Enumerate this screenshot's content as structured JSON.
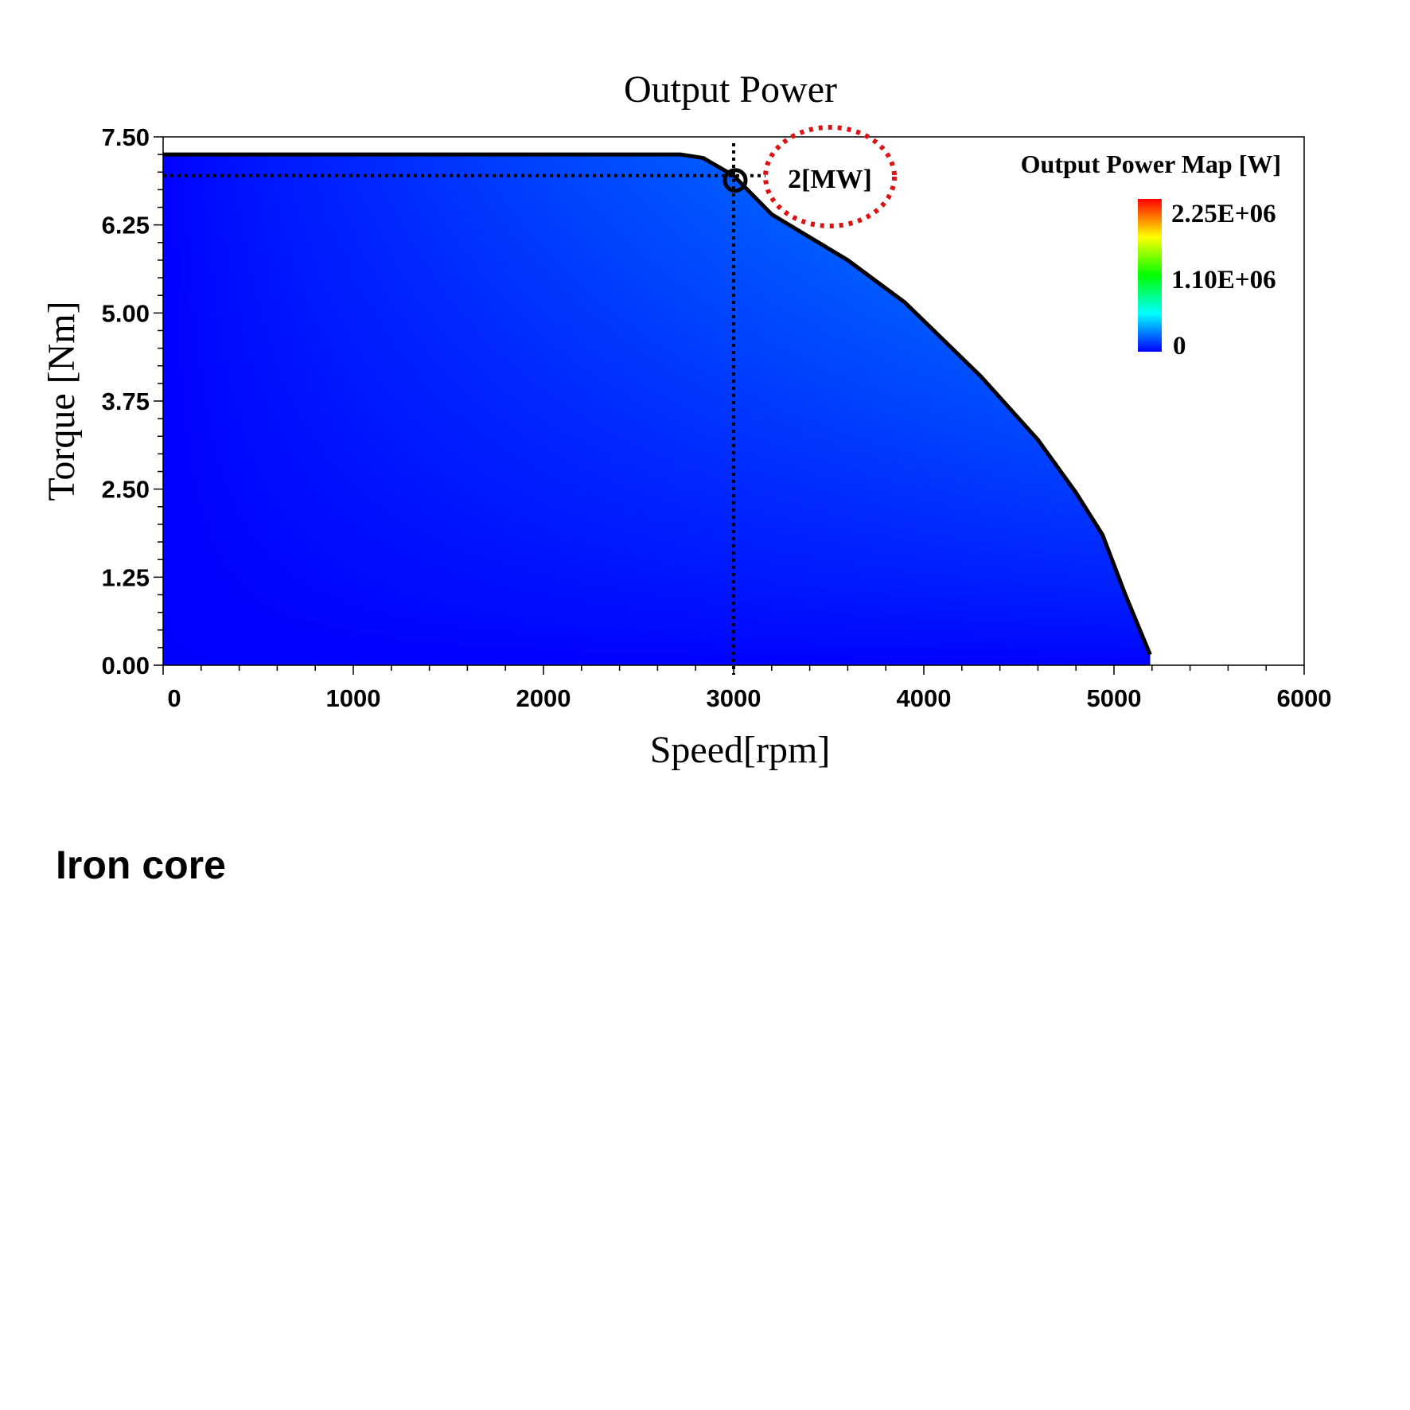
{
  "chart_data": {
    "type": "heatmap",
    "title": "Output Power",
    "xlabel": "Speed[rpm]",
    "ylabel": "Torque [Nm]",
    "xlim": [
      0,
      6000
    ],
    "ylim": [
      0,
      7.5
    ],
    "x_ticks": [
      "0",
      "1000",
      "2000",
      "3000",
      "4000",
      "5000",
      "6000"
    ],
    "y_ticks": [
      "0.00",
      "1.25",
      "2.50",
      "3.75",
      "5.00",
      "6.25",
      "7.50"
    ],
    "colorbar": {
      "title": "Output Power Map [W]",
      "labels": [
        "2.25E+06",
        "1.10E+06",
        "0"
      ],
      "max": 2250000,
      "min": 0,
      "colors": [
        "#0000ff",
        "#00ffff",
        "#00ff00",
        "#ffff00",
        "#ff0000"
      ]
    },
    "envelope": {
      "speed": [
        0,
        2720,
        2840,
        3000,
        3200,
        3600,
        3900,
        4300,
        4600,
        4800,
        4940,
        5060,
        5190
      ],
      "torque": [
        7.25,
        7.25,
        7.2,
        6.95,
        6.4,
        5.75,
        5.15,
        4.1,
        3.2,
        2.45,
        1.85,
        1.0,
        0.15
      ]
    },
    "marker": {
      "speed": 3000,
      "torque": 6.95,
      "label": "2[MW]"
    },
    "annotation_color": "#dd1111"
  },
  "caption": "Iron core"
}
